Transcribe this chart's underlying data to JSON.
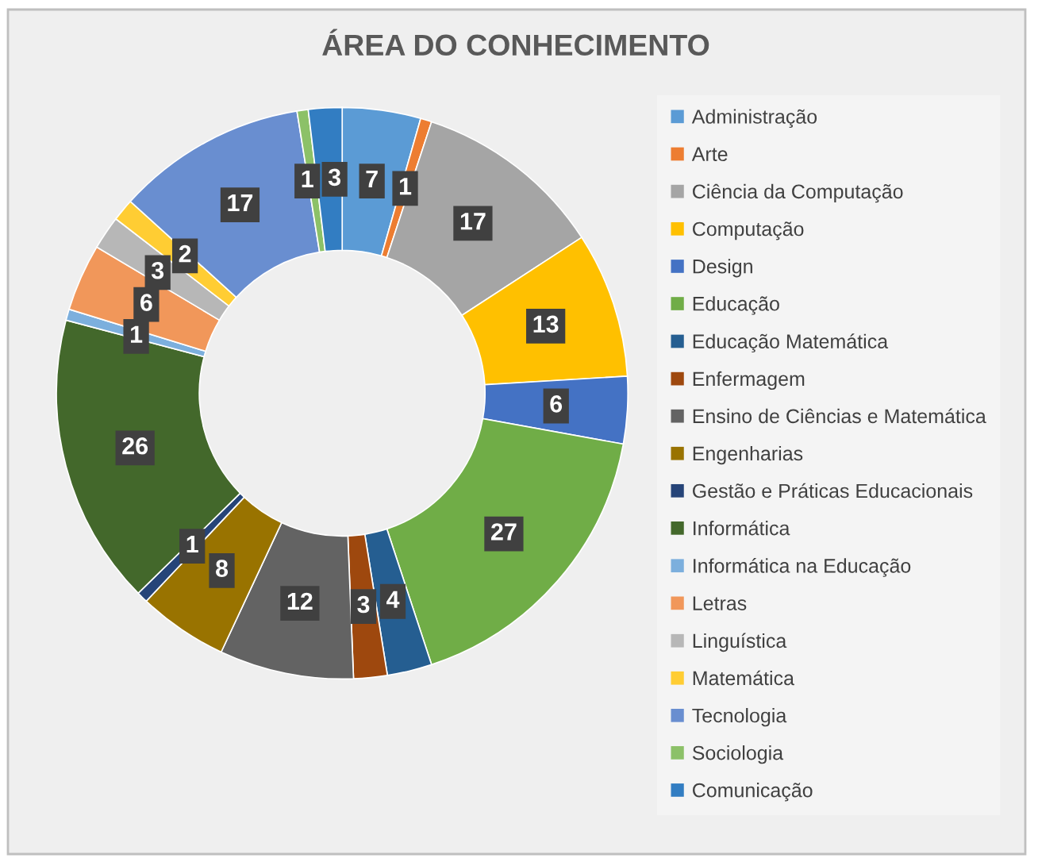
{
  "chart_data": {
    "type": "donut",
    "title": "ÁREA DO CONHECIMENTO",
    "categories": [
      "Administração",
      "Arte",
      "Ciência da Computação",
      "Computação",
      "Design",
      "Educação",
      "Educação Matemática",
      "Enfermagem",
      "Ensino de Ciências e Matemática",
      "Engenharias",
      "Gestão e Práticas Educacionais",
      "Informática",
      "Informática na Educação",
      "Letras",
      "Linguística",
      "Matemática",
      "Tecnologia",
      "Sociologia",
      "Comunicação"
    ],
    "values": [
      7,
      1,
      17,
      13,
      6,
      27,
      4,
      3,
      12,
      8,
      1,
      26,
      1,
      6,
      3,
      2,
      17,
      1,
      3
    ],
    "colors": [
      "#5b9bd5",
      "#ed7d31",
      "#a5a5a5",
      "#ffc000",
      "#4472c4",
      "#70ad47",
      "#255e91",
      "#9e480e",
      "#636363",
      "#997300",
      "#264478",
      "#43682b",
      "#7cafdd",
      "#f1975a",
      "#b7b7b7",
      "#ffcd33",
      "#698ed0",
      "#8cc168",
      "#327dc2"
    ],
    "data_labels": true,
    "legend": "right"
  }
}
